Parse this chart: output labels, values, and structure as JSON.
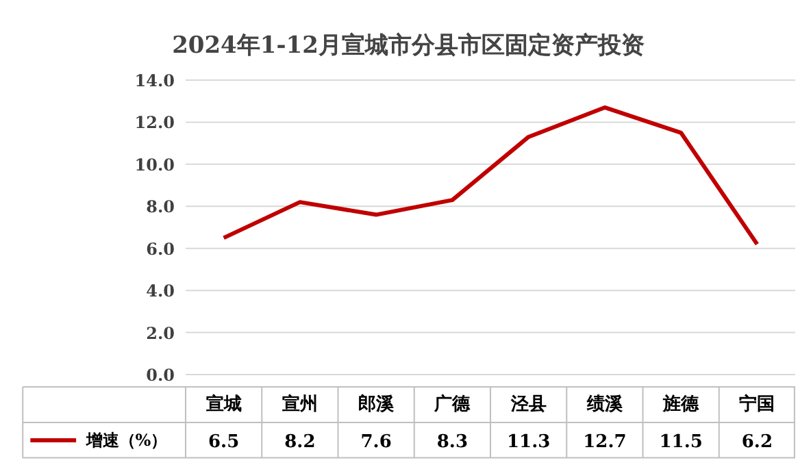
{
  "chart_data": {
    "type": "line",
    "title": "2024年1-12月宣城市分县市区固定资产投资",
    "categories": [
      "宣城",
      "宣州",
      "郎溪",
      "广德",
      "泾县",
      "绩溪",
      "旌德",
      "宁国"
    ],
    "series": [
      {
        "name": "增速（%）",
        "color": "#c00000",
        "values": [
          6.5,
          8.2,
          7.6,
          8.3,
          11.3,
          12.7,
          11.5,
          6.2
        ]
      }
    ],
    "ylim": [
      0,
      14
    ],
    "yticks": [
      {
        "value": 0,
        "label": "0.0"
      },
      {
        "value": 2,
        "label": "2.0"
      },
      {
        "value": 4,
        "label": "4.0"
      },
      {
        "value": 6,
        "label": "6.0"
      },
      {
        "value": 8,
        "label": "8.0"
      },
      {
        "value": 10,
        "label": "10.0"
      },
      {
        "value": 12,
        "label": "12.0"
      },
      {
        "value": 14,
        "label": "14.0"
      }
    ],
    "data_labels": true,
    "grid": "y",
    "legend": "bottom",
    "marker": "none",
    "line_style": "solid"
  }
}
